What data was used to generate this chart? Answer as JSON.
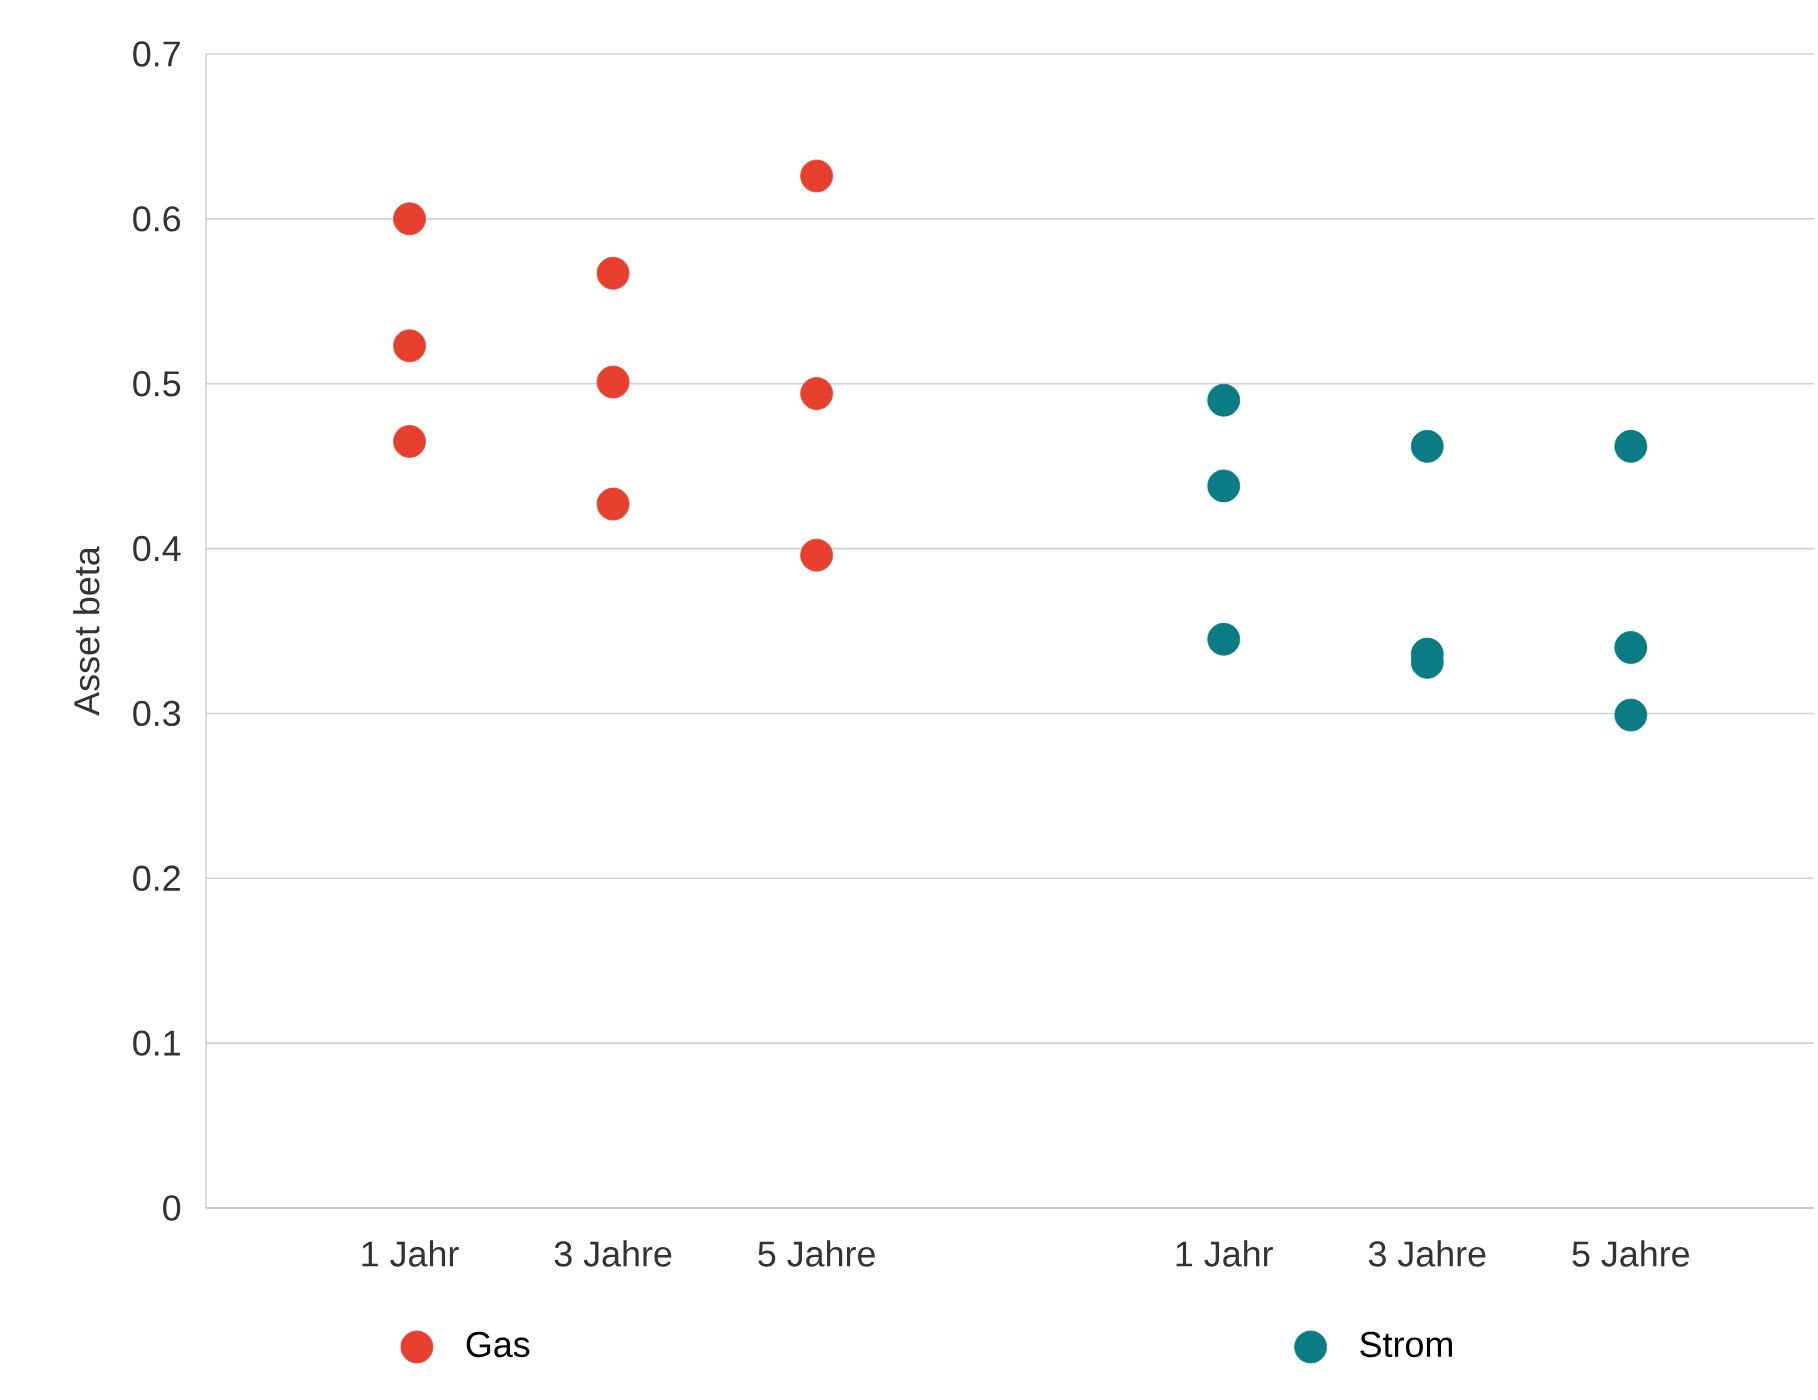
{
  "chart_data": {
    "type": "scatter",
    "ylabel": "Asset beta",
    "categories": [
      "1 Jahr",
      "3 Jahre",
      "5 Jahre",
      null,
      "1 Jahr",
      "3 Jahre",
      "5 Jahre"
    ],
    "series": [
      {
        "name": "Gas",
        "color": "#e8402f",
        "values": [
          0.6,
          0.567,
          0.626,
          null,
          null,
          null,
          null
        ]
      },
      {
        "color": "#e8402f",
        "values": [
          0.523,
          0.501,
          0.494,
          null,
          null,
          null,
          null
        ]
      },
      {
        "color": "#e8402f",
        "values": [
          0.465,
          0.427,
          0.396,
          null,
          null,
          null,
          null
        ]
      },
      {
        "name": "Strom",
        "color": "#0b7b84",
        "values": [
          null,
          null,
          null,
          null,
          0.49,
          0.462,
          0.462
        ]
      },
      {
        "color": "#0b7b84",
        "values": [
          null,
          null,
          null,
          null,
          0.438,
          0.336,
          0.34
        ]
      },
      {
        "color": "#0b7b84",
        "values": [
          null,
          null,
          null,
          null,
          0.345,
          0.331,
          0.299
        ]
      }
    ],
    "ylim": [
      0,
      0.7
    ],
    "yticks": [
      0,
      0.1,
      0.2,
      0.3,
      0.4,
      0.5,
      0.6,
      0.7
    ],
    "grid": "y",
    "legend": "bottom",
    "marker": "circle"
  }
}
